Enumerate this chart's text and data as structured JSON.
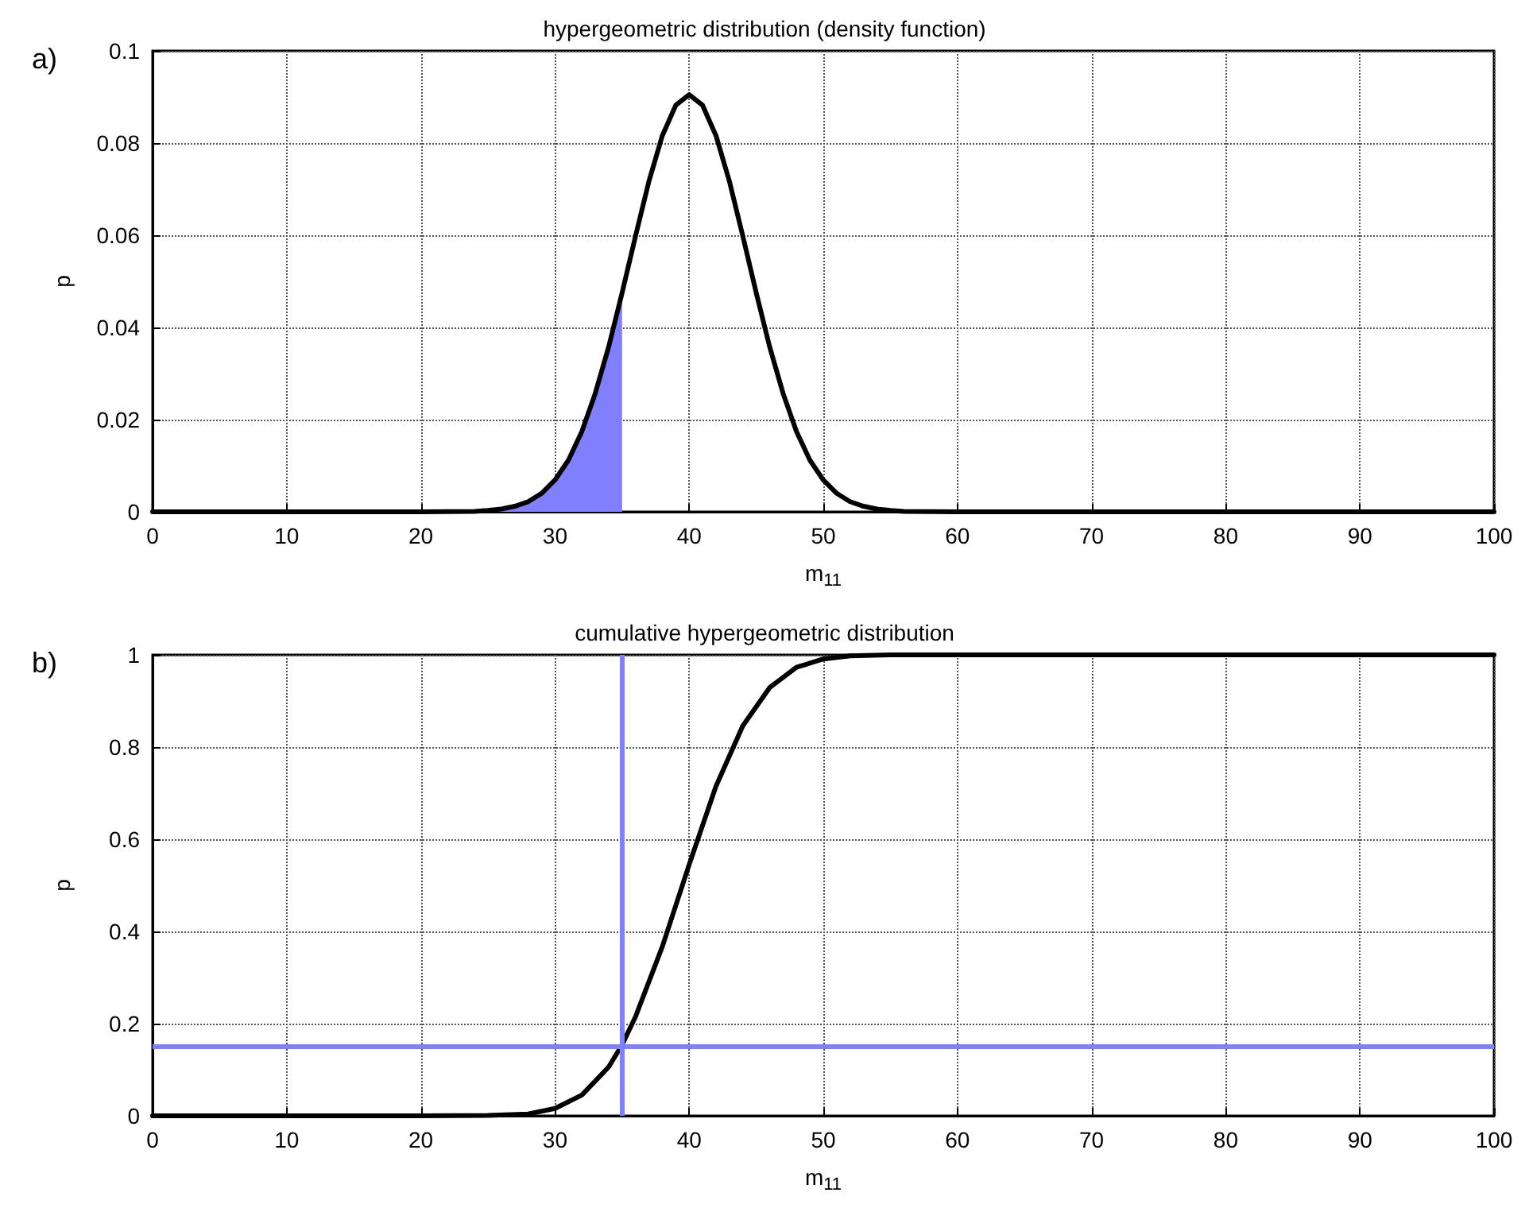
{
  "chart_data": [
    {
      "type": "line",
      "title": "hypergeometric distribution (density function)",
      "xlabel": "m$_{11}$",
      "ylabel": "p",
      "annotations": [
        "a)"
      ],
      "series": [
        {
          "type": "area",
          "color": "#8080ff",
          "x": [
            25,
            26,
            27,
            28,
            29,
            30,
            31,
            32,
            33,
            34,
            35
          ],
          "values": [
            0.0003,
            0.0006,
            0.0012,
            0.0022,
            0.004,
            0.0069,
            0.0112,
            0.0174,
            0.0257,
            0.0358,
            0.0475
          ]
        },
        {
          "color": "#000000",
          "x": [
            0,
            10,
            20,
            24,
            25,
            26,
            27,
            28,
            29,
            30,
            31,
            32,
            33,
            34,
            35,
            36,
            37,
            38,
            39,
            40,
            41,
            42,
            43,
            44,
            45,
            46,
            47,
            48,
            49,
            50,
            51,
            52,
            53,
            54,
            55,
            56,
            60,
            70,
            80,
            90,
            100
          ],
          "values": [
            0,
            0,
            0,
            0.0001,
            0.0003,
            0.0006,
            0.0012,
            0.0022,
            0.004,
            0.0069,
            0.0112,
            0.0174,
            0.0257,
            0.0358,
            0.0475,
            0.0598,
            0.0717,
            0.0816,
            0.0882,
            0.0905,
            0.0882,
            0.0816,
            0.0717,
            0.0598,
            0.0475,
            0.0358,
            0.0257,
            0.0174,
            0.0112,
            0.0069,
            0.004,
            0.0022,
            0.0012,
            0.0006,
            0.0003,
            0.0001,
            0,
            0,
            0,
            0,
            0
          ]
        }
      ],
      "xlim": [
        0,
        100
      ],
      "xticks": [
        0,
        10,
        20,
        30,
        40,
        50,
        60,
        70,
        80,
        90,
        100
      ],
      "ylim": [
        0,
        0.1
      ],
      "yticks": [
        0,
        0.02,
        0.04,
        0.06,
        0.08,
        0.1
      ],
      "grid": true,
      "marker": "none",
      "line_style": "solid"
    },
    {
      "type": "line",
      "title": "cumulative hypergeometric distribution",
      "xlabel": "m$_{11}$",
      "ylabel": "p",
      "annotations": [
        "b)"
      ],
      "series": [
        {
          "color": "#000000",
          "x": [
            0,
            10,
            20,
            25,
            28,
            30,
            32,
            34,
            35,
            36,
            38,
            40,
            42,
            44,
            46,
            48,
            50,
            52,
            55,
            60,
            70,
            80,
            90,
            100
          ],
          "values": [
            0,
            0,
            0,
            0.001,
            0.004,
            0.016,
            0.045,
            0.106,
            0.154,
            0.215,
            0.367,
            0.545,
            0.715,
            0.846,
            0.929,
            0.973,
            0.991,
            0.998,
            1,
            1,
            1,
            1,
            1,
            1
          ]
        }
      ],
      "ref_lines": [
        {
          "axis": "x",
          "value": 35,
          "color": "#8080ff"
        },
        {
          "axis": "y",
          "value": 0.15,
          "color": "#8080ff"
        }
      ],
      "xlim": [
        0,
        100
      ],
      "xticks": [
        0,
        10,
        20,
        30,
        40,
        50,
        60,
        70,
        80,
        90,
        100
      ],
      "ylim": [
        0,
        1
      ],
      "yticks": [
        0,
        0.2,
        0.4,
        0.6,
        0.8,
        1
      ],
      "grid": true,
      "marker": "none",
      "line_style": "solid"
    }
  ]
}
